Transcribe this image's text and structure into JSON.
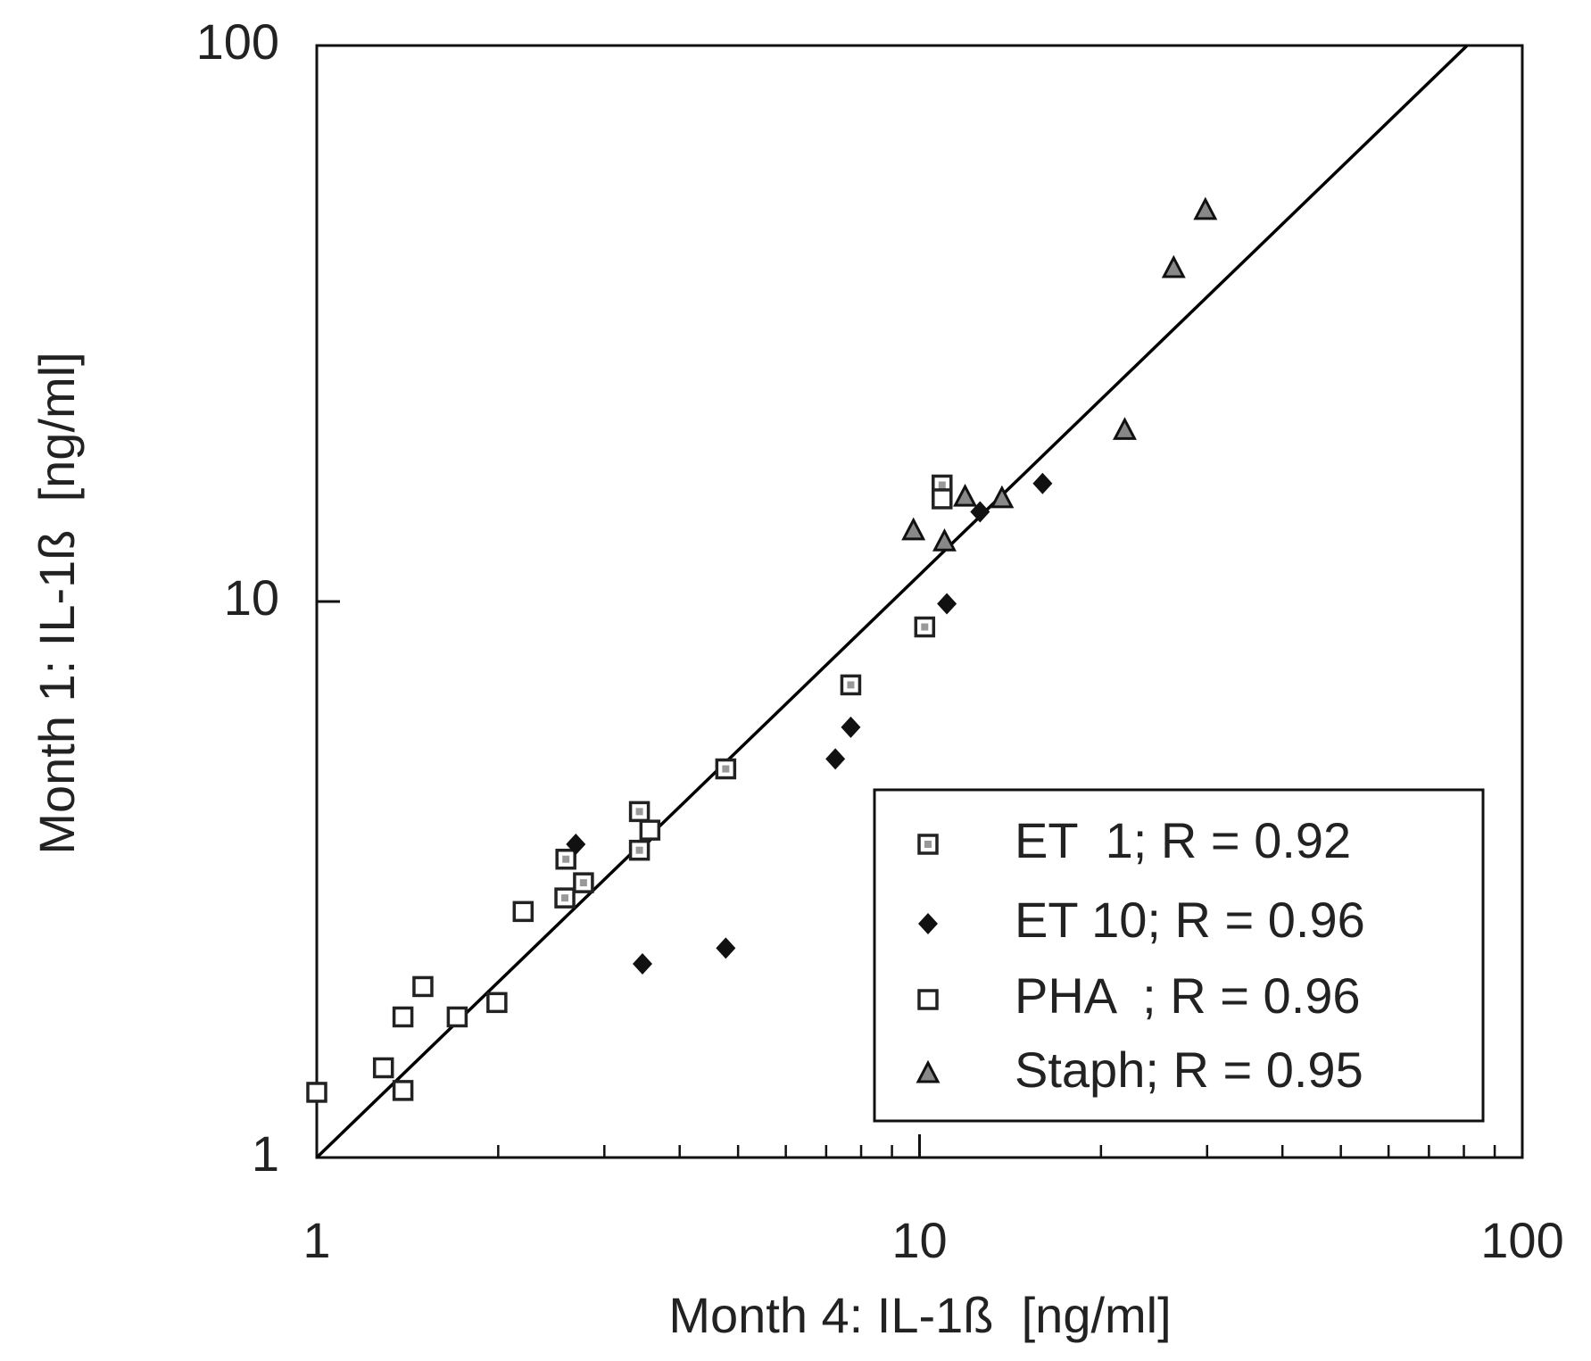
{
  "chart_data": {
    "type": "scatter",
    "xlabel": "Month 4: IL-1ß  [ng/ml]",
    "ylabel": "Month 1: IL-1ß  [ng/ml]",
    "xscale": "log",
    "yscale": "log",
    "xlim": [
      1,
      100
    ],
    "ylim": [
      1,
      100
    ],
    "xticks": [
      1,
      10,
      100
    ],
    "yticks": [
      1,
      10,
      100
    ],
    "xminorticks": [
      2,
      3,
      4,
      5,
      6,
      7,
      8,
      9,
      20,
      30,
      40,
      50,
      60,
      70,
      80,
      90
    ],
    "legend": "bottom-right",
    "line": {
      "x": [
        1,
        81
      ],
      "y": [
        1,
        100
      ],
      "color": "#000000"
    },
    "series": [
      {
        "name": "ET  1; R = 0.92",
        "marker": "dotted-square",
        "color": "#999999",
        "x": [
          3.43,
          2.59,
          7.69,
          10.2,
          10.9,
          4.77,
          2.58,
          2.77,
          3.43
        ],
        "values": [
          4.19,
          3.44,
          7.08,
          9.0,
          16.2,
          5.0,
          2.93,
          3.12,
          3.57
        ]
      },
      {
        "name": "ET 10; R = 0.96",
        "marker": "diamond",
        "color": "#111111",
        "x": [
          2.69,
          3.57,
          3.47,
          4.77,
          7.25,
          7.69,
          11.1,
          12.6,
          16.0
        ],
        "values": [
          3.66,
          3.85,
          2.23,
          2.38,
          5.21,
          5.94,
          9.91,
          14.5,
          16.3
        ]
      },
      {
        "name": "PHA  ; R = 0.96",
        "marker": "square",
        "color": "#ffffff",
        "x": [
          1,
          1.29,
          1.39,
          1.39,
          1.5,
          1.71,
          1.99,
          2.2,
          3.57,
          10.9
        ],
        "values": [
          1.31,
          1.45,
          1.32,
          1.79,
          2.03,
          1.79,
          1.9,
          2.77,
          3.88,
          15.3
        ]
      },
      {
        "name": "Staph; R = 0.95",
        "marker": "triangle",
        "color": "#888888",
        "x": [
          9.77,
          11.0,
          11.9,
          13.7,
          21.9,
          26.4,
          29.8
        ],
        "values": [
          13.4,
          12.8,
          15.4,
          15.3,
          20.3,
          39.7,
          50.5
        ]
      }
    ]
  }
}
